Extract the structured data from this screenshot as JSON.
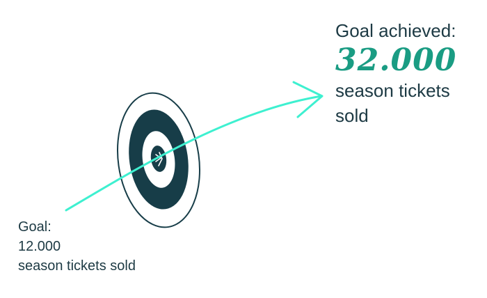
{
  "achieved": {
    "label": "Goal achieved:",
    "value": "32.000",
    "desc_line1": "season tickets",
    "desc_line2": "sold"
  },
  "goal": {
    "label": "Goal:",
    "value": "12.000",
    "desc": "season tickets sold"
  },
  "colors": {
    "arrow": "#3ef0d0",
    "accent_number": "#1a9c83",
    "target_ring": "#173d48",
    "text": "#1d3a44"
  },
  "icons": {
    "target": "target-icon",
    "arrow": "trajectory-arrow-icon"
  }
}
